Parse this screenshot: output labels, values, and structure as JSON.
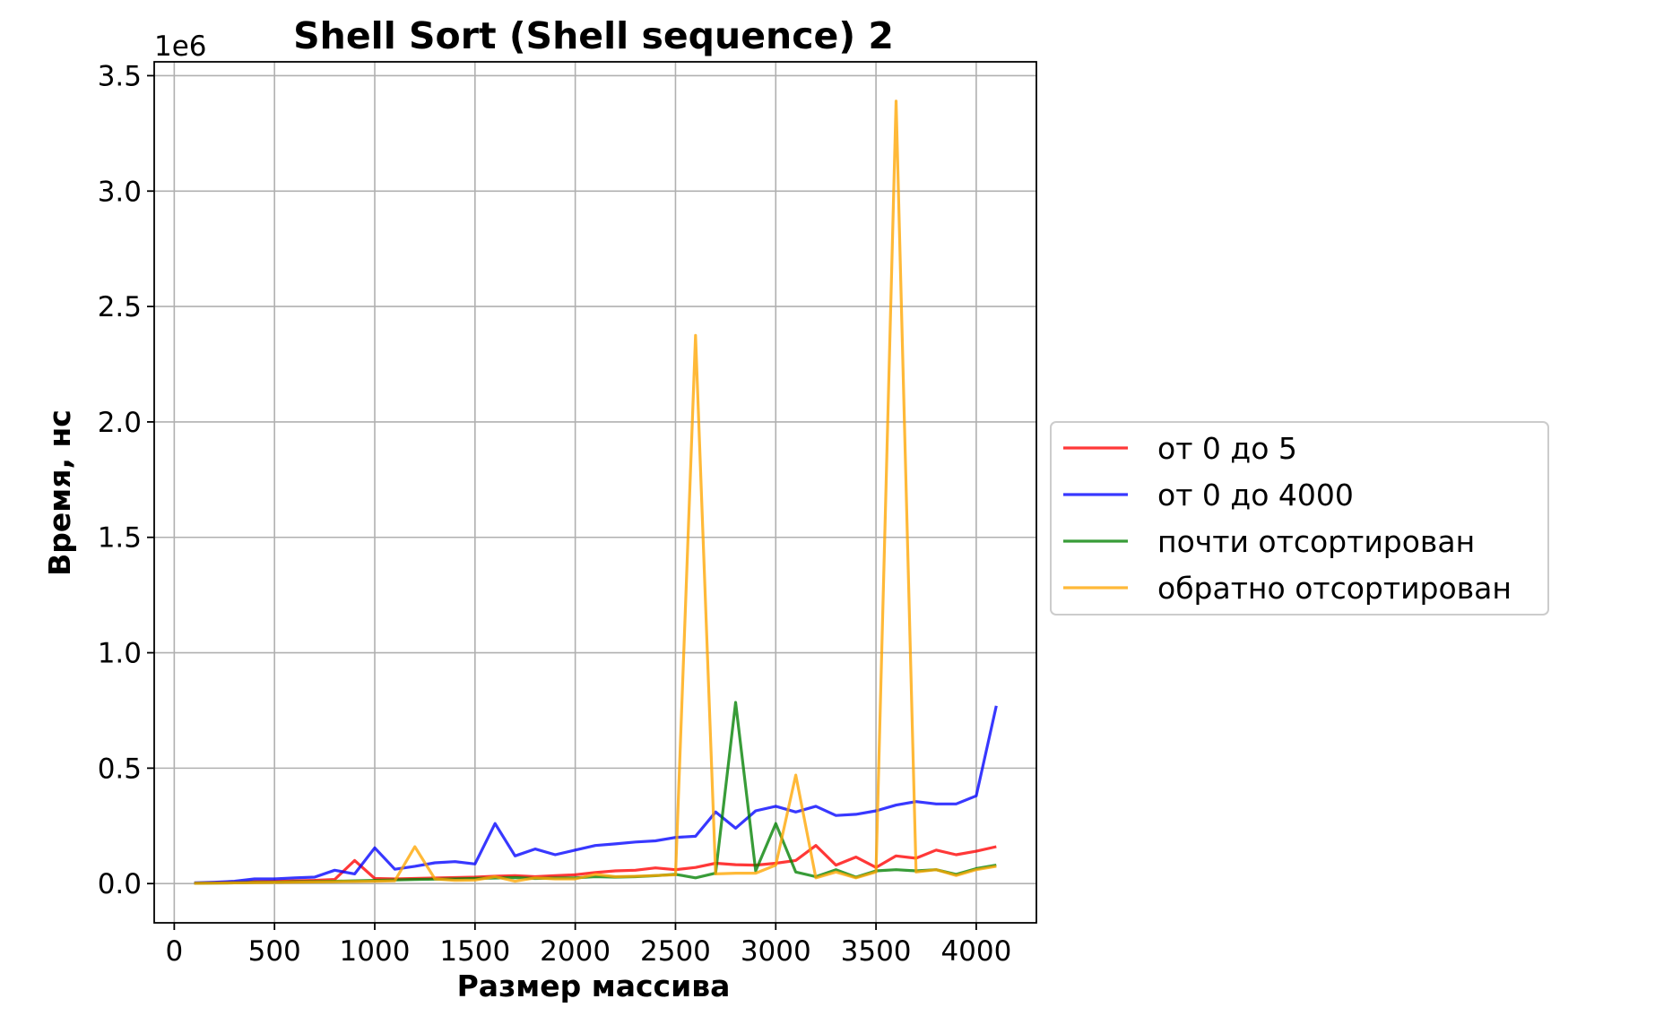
{
  "chart_data": {
    "type": "line",
    "title": "Shell Sort (Shell sequence) 2",
    "xlabel": "Размер массива",
    "ylabel": "Время, нс",
    "y_offset_text": "1e6",
    "xlim": [
      -100,
      4300
    ],
    "ylim": [
      -170000,
      3560000
    ],
    "x_ticks": [
      0,
      500,
      1000,
      1500,
      2000,
      2500,
      3000,
      3500,
      4000
    ],
    "x_tick_labels": [
      "0",
      "500",
      "1000",
      "1500",
      "2000",
      "2500",
      "3000",
      "3500",
      "4000"
    ],
    "y_ticks": [
      0,
      500000,
      1000000,
      1500000,
      2000000,
      2500000,
      3000000,
      3500000
    ],
    "y_tick_labels": [
      "0.0",
      "0.5",
      "1.0",
      "1.5",
      "2.0",
      "2.5",
      "3.0",
      "3.5"
    ],
    "grid": true,
    "legend_position": "outside right",
    "x": [
      100,
      200,
      300,
      400,
      500,
      600,
      700,
      800,
      900,
      1000,
      1100,
      1200,
      1300,
      1400,
      1500,
      1600,
      1700,
      1800,
      1900,
      2000,
      2100,
      2200,
      2300,
      2400,
      2500,
      2600,
      2700,
      2800,
      2900,
      3000,
      3100,
      3200,
      3300,
      3400,
      3500,
      3600,
      3700,
      3800,
      3900,
      4000,
      4100
    ],
    "series": [
      {
        "name": "от 0 до 5",
        "color": "#ff0000",
        "values": [
          2000,
          4000,
          6000,
          8000,
          10000,
          12000,
          14000,
          18000,
          100000,
          22000,
          20000,
          22000,
          24000,
          26000,
          28000,
          32000,
          34000,
          30000,
          34000,
          38000,
          48000,
          55000,
          58000,
          68000,
          60000,
          70000,
          88000,
          82000,
          80000,
          88000,
          100000,
          165000,
          80000,
          115000,
          70000,
          120000,
          110000,
          145000,
          125000,
          140000,
          160000
        ]
      },
      {
        "name": "от 0 до 4000",
        "color": "#0000ff",
        "values": [
          3000,
          6000,
          10000,
          20000,
          20000,
          25000,
          28000,
          58000,
          42000,
          155000,
          62000,
          75000,
          90000,
          95000,
          85000,
          260000,
          120000,
          150000,
          125000,
          145000,
          165000,
          172000,
          180000,
          185000,
          200000,
          205000,
          310000,
          240000,
          315000,
          335000,
          310000,
          335000,
          295000,
          300000,
          315000,
          340000,
          355000,
          345000,
          345000,
          380000,
          770000
        ]
      },
      {
        "name": "почти отсортирован",
        "color": "#008000",
        "values": [
          1000,
          2000,
          3000,
          5000,
          6000,
          8000,
          9000,
          10000,
          12000,
          14000,
          16000,
          18000,
          19000,
          20000,
          22000,
          24000,
          26000,
          22000,
          24000,
          25000,
          30000,
          28000,
          30000,
          34000,
          40000,
          25000,
          45000,
          785000,
          55000,
          260000,
          50000,
          30000,
          60000,
          28000,
          55000,
          60000,
          55000,
          60000,
          40000,
          65000,
          80000
        ]
      },
      {
        "name": "обратно отсортирован",
        "color": "#ffa500",
        "values": [
          1000,
          2000,
          3000,
          4000,
          5000,
          6000,
          7000,
          8000,
          9000,
          10000,
          12000,
          160000,
          20000,
          14000,
          15000,
          30000,
          10000,
          25000,
          20000,
          20000,
          40000,
          30000,
          32000,
          35000,
          38000,
          2375000,
          42000,
          45000,
          45000,
          80000,
          470000,
          25000,
          50000,
          25000,
          50000,
          3390000,
          50000,
          60000,
          35000,
          60000,
          75000
        ]
      }
    ]
  }
}
